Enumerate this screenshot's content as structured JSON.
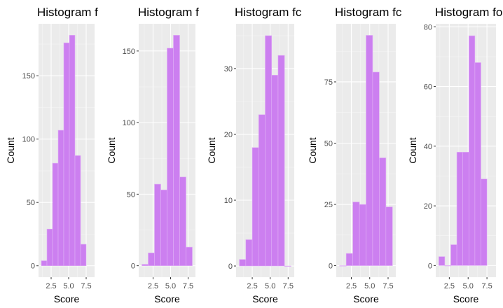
{
  "style": {
    "panel_bg": "#ebebeb",
    "grid_major": "#ffffff",
    "grid_minor": "#f5f5f5",
    "bar_fill": "#cc7ff0",
    "bar_stroke": "#e0b0f5",
    "tick_color": "#333333"
  },
  "chart_data": [
    {
      "type": "bar",
      "title": "Histogram f",
      "xlabel": "Score",
      "ylabel": "Count",
      "bin_width": 0.8,
      "bin_starts": [
        1.1,
        1.9,
        2.7,
        3.5,
        4.3,
        5.1,
        5.9,
        6.7,
        7.5
      ],
      "values": [
        4,
        29,
        81,
        107,
        176,
        182,
        87,
        17
      ],
      "xlim": [
        0.7,
        8.7
      ],
      "ylim": [
        -9,
        191
      ],
      "xticks": [
        2.5,
        5.0,
        7.5
      ],
      "xtick_labels": [
        "2.5",
        "5.0",
        "7.5"
      ],
      "yticks": [
        0,
        50,
        100,
        150
      ],
      "ytick_labels": [
        "0",
        "50",
        "100",
        "150"
      ]
    },
    {
      "type": "bar",
      "title": "Histogram f",
      "xlabel": "Score",
      "ylabel": "Count",
      "bin_width": 0.9,
      "bin_starts": [
        0.9,
        1.8,
        2.7,
        3.6,
        4.5,
        5.4,
        6.3,
        7.2,
        8.1
      ],
      "values": [
        1,
        9,
        57,
        53,
        152,
        161,
        62,
        13
      ],
      "xlim": [
        0.45,
        8.55
      ],
      "ylim": [
        -8,
        169
      ],
      "xticks": [
        2.5,
        5.0,
        7.5
      ],
      "xtick_labels": [
        "2.5",
        "5.0",
        "7.5"
      ],
      "yticks": [
        0,
        50,
        100,
        150
      ],
      "ytick_labels": [
        "0",
        "50",
        "100",
        "150"
      ]
    },
    {
      "type": "bar",
      "title": "Histogram fc",
      "xlabel": "Score",
      "ylabel": "Count",
      "bin_width": 0.9,
      "bin_starts": [
        0.7,
        1.6,
        2.5,
        3.4,
        4.3,
        5.2,
        6.1,
        7.0,
        7.9
      ],
      "values": [
        1,
        4,
        18,
        23,
        35,
        29,
        32,
        0
      ],
      "xlim": [
        0.25,
        8.35
      ],
      "ylim": [
        -1.7,
        36.8
      ],
      "xticks": [
        2.5,
        5.0,
        7.5
      ],
      "xtick_labels": [
        "2.5",
        "5.0",
        "7.5"
      ],
      "yticks": [
        0,
        10,
        20,
        30
      ],
      "ytick_labels": [
        "0",
        "10",
        "20",
        "30"
      ]
    },
    {
      "type": "bar",
      "title": "Histogram fc",
      "xlabel": "Score",
      "ylabel": "Count",
      "bin_width": 0.9,
      "bin_starts": [
        0.9,
        1.8,
        2.7,
        3.6,
        4.5,
        5.4,
        6.3,
        7.2,
        8.1
      ],
      "values": [
        0,
        5,
        26,
        25,
        94,
        79,
        44,
        24
      ],
      "xlim": [
        0.45,
        8.55
      ],
      "ylim": [
        -4.7,
        98.7
      ],
      "xticks": [
        2.5,
        5.0,
        7.5
      ],
      "xtick_labels": [
        "2.5",
        "5.0",
        "7.5"
      ],
      "yticks": [
        0,
        25,
        50,
        75
      ],
      "ytick_labels": [
        "0",
        "25",
        "50",
        "75"
      ]
    },
    {
      "type": "bar",
      "title": "Histogram fo",
      "xlabel": "Score",
      "ylabel": "Count",
      "bin_width": 0.8,
      "bin_starts": [
        1.1,
        1.9,
        2.7,
        3.5,
        4.3,
        5.1,
        5.9,
        6.7,
        7.5
      ],
      "values": [
        3,
        0,
        7,
        38,
        38,
        77,
        68,
        29
      ],
      "xlim": [
        0.7,
        8.7
      ],
      "ylim": [
        -3.9,
        81
      ],
      "xticks": [
        2.5,
        5.0,
        7.5
      ],
      "xtick_labels": [
        "2.5",
        "5.0",
        "7.5"
      ],
      "yticks": [
        0,
        20,
        40,
        60,
        80
      ],
      "ytick_labels": [
        "0",
        "20",
        "40",
        "60",
        "80"
      ]
    }
  ]
}
